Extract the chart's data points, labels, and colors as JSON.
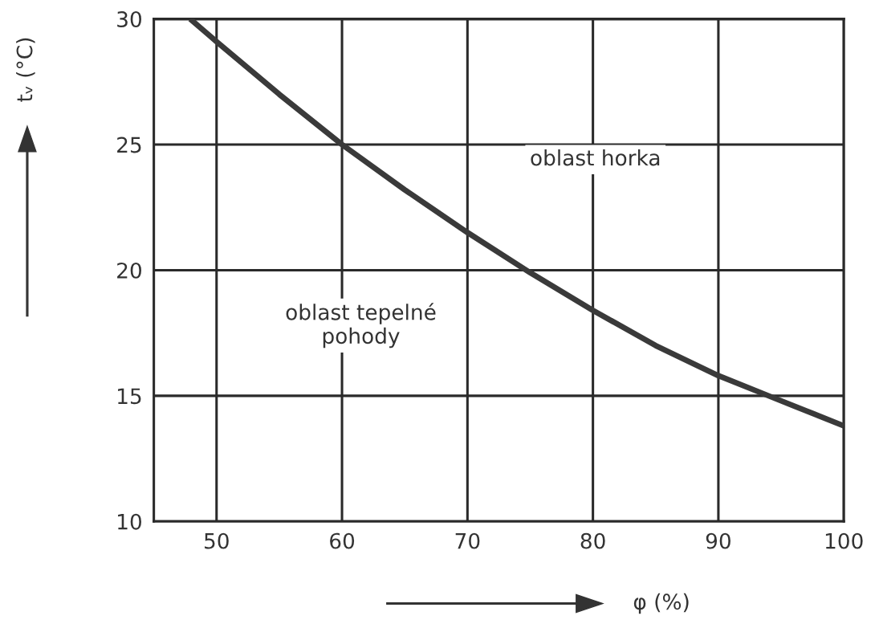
{
  "chart_data": {
    "type": "line",
    "xlabel": "φ (%)",
    "ylabel": "tᵥ (°C)",
    "x": [
      47.9,
      50,
      55,
      60,
      65,
      70,
      75,
      80,
      85,
      90,
      94,
      100
    ],
    "series": [
      {
        "color": "#3a3a3a",
        "values": [
          30,
          29.1,
          27,
          25,
          23.2,
          21.5,
          19.9,
          18.4,
          17,
          15.8,
          15,
          13.8
        ]
      }
    ],
    "xlim": [
      45,
      100
    ],
    "ylim": [
      10,
      30
    ],
    "xticks": [
      50,
      60,
      70,
      80,
      90,
      100
    ],
    "yticks": [
      10,
      15,
      20,
      25,
      30
    ],
    "grid": true,
    "marker": "none",
    "line_style": "solid",
    "annotations": [
      "oblast horka",
      "oblast tepelné\npohody"
    ]
  }
}
